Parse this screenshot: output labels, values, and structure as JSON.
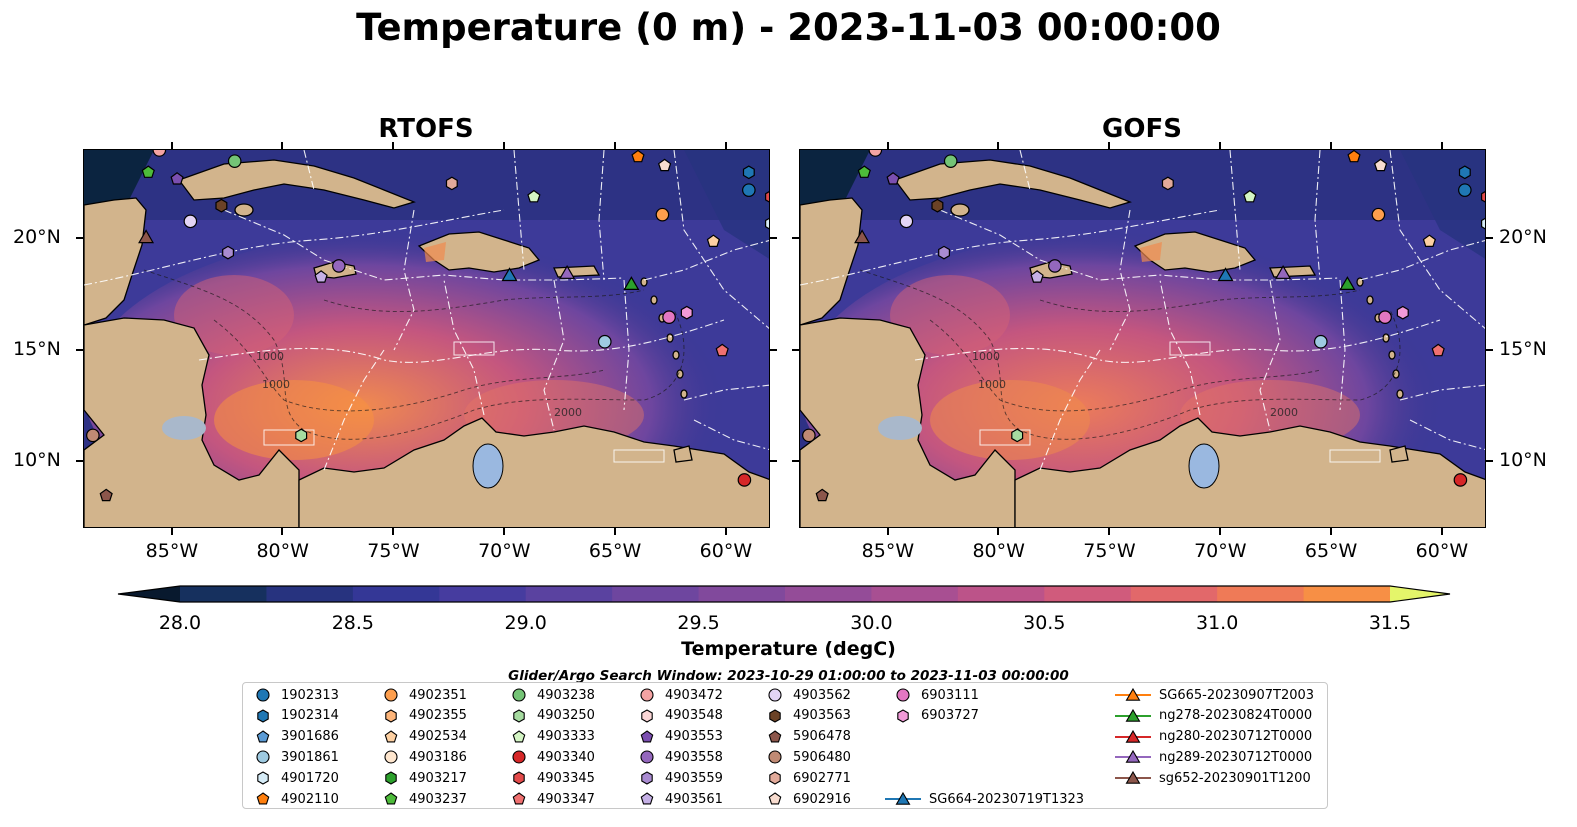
{
  "title": "Temperature (0 m) - 2023-11-03 00:00:00",
  "panels": [
    {
      "id": "rtofs",
      "title": "RTOFS"
    },
    {
      "id": "gofs",
      "title": "GOFS"
    }
  ],
  "map_extent": {
    "lon": [
      -89,
      -58
    ],
    "lat": [
      7,
      24
    ]
  },
  "lon_ticks": [
    {
      "value": -85,
      "label": "85°W"
    },
    {
      "value": -80,
      "label": "80°W"
    },
    {
      "value": -75,
      "label": "75°W"
    },
    {
      "value": -70,
      "label": "70°W"
    },
    {
      "value": -65,
      "label": "65°W"
    },
    {
      "value": -60,
      "label": "60°W"
    }
  ],
  "lat_ticks": [
    {
      "value": 20,
      "label": "20°N"
    },
    {
      "value": 15,
      "label": "15°N"
    },
    {
      "value": 10,
      "label": "10°N"
    }
  ],
  "contour_labels": [
    "1000",
    "1000",
    "2000",
    "2000"
  ],
  "colorbar": {
    "label": "Temperature (degC)",
    "min": 28.0,
    "max": 31.5,
    "step": 0.25,
    "extend": "both",
    "ticks": [
      "28.0",
      "28.5",
      "29.0",
      "29.5",
      "30.0",
      "30.5",
      "31.0",
      "31.5"
    ],
    "colors": [
      "#0b2440",
      "#16305e",
      "#27337f",
      "#343796",
      "#463c9f",
      "#5a42a0",
      "#6e469f",
      "#81499c",
      "#944c98",
      "#a84f92",
      "#bc5389",
      "#d05b7c",
      "#e2686a",
      "#ef7a57",
      "#f78f45",
      "#fba63a",
      "#f9bf3c",
      "#f1d84a"
    ],
    "under_color": "#08192e",
    "over_color": "#e4f56a"
  },
  "legend": {
    "caption": "Glider/Argo Search Window: 2023-10-29 01:00:00 to 2023-11-03 00:00:00",
    "items": [
      {
        "label": "1902313",
        "marker": "circle",
        "color": "#1f77b4"
      },
      {
        "label": "1902314",
        "marker": "hexagon",
        "color": "#1f77b4"
      },
      {
        "label": "3901686",
        "marker": "pentagon",
        "color": "#5b9bd5"
      },
      {
        "label": "3901861",
        "marker": "circle",
        "color": "#9ecae1"
      },
      {
        "label": "4901720",
        "marker": "hexagon",
        "color": "#d6ecf7"
      },
      {
        "label": "4902110",
        "marker": "pentagon",
        "color": "#ff7f0e"
      },
      {
        "label": "4902351",
        "marker": "circle",
        "color": "#fd9e4d"
      },
      {
        "label": "4902355",
        "marker": "hexagon",
        "color": "#fdb57a"
      },
      {
        "label": "4902534",
        "marker": "pentagon",
        "color": "#fdd0a2"
      },
      {
        "label": "4903186",
        "marker": "circle",
        "color": "#fee6ce"
      },
      {
        "label": "4903217",
        "marker": "hexagon",
        "color": "#2ca02c"
      },
      {
        "label": "4903237",
        "marker": "pentagon",
        "color": "#4dbb3a"
      },
      {
        "label": "4903238",
        "marker": "circle",
        "color": "#74c476"
      },
      {
        "label": "4903250",
        "marker": "hexagon",
        "color": "#a6dba0"
      },
      {
        "label": "4903333",
        "marker": "pentagon",
        "color": "#d4f5c4"
      },
      {
        "label": "4903340",
        "marker": "circle",
        "color": "#d62728"
      },
      {
        "label": "4903345",
        "marker": "hexagon",
        "color": "#e34a4a"
      },
      {
        "label": "4903347",
        "marker": "pentagon",
        "color": "#f07070"
      },
      {
        "label": "4903472",
        "marker": "circle",
        "color": "#f4a3a3"
      },
      {
        "label": "4903548",
        "marker": "hexagon",
        "color": "#fbd6d6"
      },
      {
        "label": "4903553",
        "marker": "pentagon",
        "color": "#7b4fb0"
      },
      {
        "label": "4903558",
        "marker": "circle",
        "color": "#9467bd"
      },
      {
        "label": "4903559",
        "marker": "hexagon",
        "color": "#a98bd1"
      },
      {
        "label": "4903561",
        "marker": "pentagon",
        "color": "#c5b0e6"
      },
      {
        "label": "4903562",
        "marker": "circle",
        "color": "#e3d4f5"
      },
      {
        "label": "4903563",
        "marker": "hexagon",
        "color": "#6b4226"
      },
      {
        "label": "5906478",
        "marker": "pentagon",
        "color": "#8c564b"
      },
      {
        "label": "5906480",
        "marker": "circle",
        "color": "#c08a74"
      },
      {
        "label": "6902771",
        "marker": "hexagon",
        "color": "#e2aa9a"
      },
      {
        "label": "6902916",
        "marker": "pentagon",
        "color": "#f8dccf"
      },
      {
        "label": "6903111",
        "marker": "circle",
        "color": "#e377c2"
      },
      {
        "label": "6903727",
        "marker": "hexagon",
        "color": "#f19ad8"
      },
      {
        "label": "SG664-20230719T1323",
        "marker": "triangle-line",
        "color": "#1f77b4"
      },
      {
        "label": "SG665-20230907T2003",
        "marker": "triangle-line",
        "color": "#ff7f0e"
      },
      {
        "label": "ng278-20230824T0000",
        "marker": "triangle-line",
        "color": "#2ca02c"
      },
      {
        "label": "ng280-20230712T0000",
        "marker": "triangle-line",
        "color": "#d62728"
      },
      {
        "label": "ng289-20230712T0000",
        "marker": "triangle-line",
        "color": "#9467bd"
      },
      {
        "label": "sg652-20230901T1200",
        "marker": "triangle-line",
        "color": "#8c564b"
      }
    ]
  },
  "argo_positions": [
    {
      "id": "4903472",
      "lon": -85.6,
      "lat": 24.0
    },
    {
      "id": "4903238",
      "lon": -82.2,
      "lat": 23.5
    },
    {
      "id": "4903237",
      "lon": -86.1,
      "lat": 23.0
    },
    {
      "id": "4903553",
      "lon": -84.8,
      "lat": 22.7
    },
    {
      "id": "4903563",
      "lon": -82.8,
      "lat": 21.5
    },
    {
      "id": "4903562",
      "lon": -84.2,
      "lat": 20.8
    },
    {
      "id": "4903559",
      "lon": -82.5,
      "lat": 19.4
    },
    {
      "id": "4903558",
      "lon": -77.5,
      "lat": 18.8
    },
    {
      "id": "4903561",
      "lon": -78.3,
      "lat": 18.3
    },
    {
      "id": "6902771",
      "lon": -72.4,
      "lat": 22.5
    },
    {
      "id": "4903333",
      "lon": -68.7,
      "lat": 21.9
    },
    {
      "id": "4902110",
      "lon": -64.0,
      "lat": 23.7
    },
    {
      "id": "6902916",
      "lon": -62.8,
      "lat": 23.3
    },
    {
      "id": "1902314",
      "lon": -59.0,
      "lat": 23.0
    },
    {
      "id": "1902313",
      "lon": -59.0,
      "lat": 22.2
    },
    {
      "id": "4902351",
      "lon": -62.9,
      "lat": 21.1
    },
    {
      "id": "4902534",
      "lon": -60.6,
      "lat": 19.9
    },
    {
      "id": "4901720",
      "lon": -58.0,
      "lat": 20.7
    },
    {
      "id": "4903345",
      "lon": -58.0,
      "lat": 21.9
    },
    {
      "id": "6903727",
      "lon": -61.8,
      "lat": 16.7
    },
    {
      "id": "6903111",
      "lon": -62.6,
      "lat": 16.5
    },
    {
      "id": "3901861",
      "lon": -65.5,
      "lat": 15.4
    },
    {
      "id": "4903347",
      "lon": -60.2,
      "lat": 15.0
    },
    {
      "id": "4903250",
      "lon": -79.2,
      "lat": 11.2
    },
    {
      "id": "5906480",
      "lon": -88.6,
      "lat": 11.2
    },
    {
      "id": "5906478",
      "lon": -88.0,
      "lat": 8.5
    },
    {
      "id": "4903340",
      "lon": -59.2,
      "lat": 9.2
    }
  ],
  "glider_positions": [
    {
      "id": "sg652-20230901T1200",
      "lon": -86.2,
      "lat": 20.1
    },
    {
      "id": "SG664-20230719T1323",
      "lon": -69.8,
      "lat": 18.4
    },
    {
      "id": "ng289-20230712T0000",
      "lon": -67.2,
      "lat": 18.5
    },
    {
      "id": "ng278-20230824T0000",
      "lon": -64.3,
      "lat": 18.0
    }
  ]
}
